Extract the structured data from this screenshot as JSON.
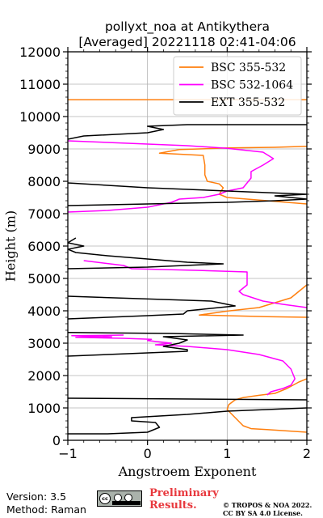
{
  "chart_data": {
    "type": "line",
    "title": "pollyxt_noa at Antikythera",
    "subtitle": "[Averaged] 20221118 02:41-04:06",
    "xlabel": "Angstroem Exponent",
    "ylabel": "Height (m)",
    "xlim": [
      -1,
      2
    ],
    "ylim": [
      0,
      12000
    ],
    "xticks": [
      -1,
      0,
      1,
      2
    ],
    "xtick_labels": [
      "−1",
      "0",
      "1",
      "2"
    ],
    "yticks": [
      0,
      1000,
      2000,
      3000,
      4000,
      5000,
      6000,
      7000,
      8000,
      9000,
      10000,
      11000,
      12000
    ],
    "grid": true,
    "legend_position": "top-right",
    "series": [
      {
        "name": "BSC 355-532",
        "color": "#ff7f0e",
        "points": [
          [
            2.0,
            250
          ],
          [
            1.5,
            330
          ],
          [
            1.3,
            360
          ],
          [
            1.2,
            450
          ],
          [
            1.1,
            700
          ],
          [
            1.0,
            950
          ],
          [
            1.02,
            1100
          ],
          [
            1.1,
            1250
          ],
          [
            1.2,
            1320
          ],
          [
            1.4,
            1390
          ],
          [
            1.6,
            1450
          ],
          [
            1.75,
            1600
          ],
          [
            1.9,
            1800
          ],
          [
            2.0,
            1900
          ],
          [
            null,
            null
          ],
          [
            2.0,
            3800
          ],
          [
            1.5,
            3820
          ],
          [
            0.65,
            3870
          ],
          [
            1.0,
            3990
          ],
          [
            1.4,
            4100
          ],
          [
            1.8,
            4400
          ],
          [
            2.0,
            4800
          ],
          [
            null,
            null
          ],
          [
            2.0,
            7300
          ],
          [
            1.5,
            7400
          ],
          [
            1.0,
            7500
          ],
          [
            0.9,
            7600
          ],
          [
            0.95,
            7800
          ],
          [
            0.9,
            7920
          ],
          [
            0.75,
            8000
          ],
          [
            0.72,
            8200
          ],
          [
            0.72,
            8500
          ],
          [
            0.7,
            8800
          ],
          [
            0.15,
            8870
          ],
          [
            0.4,
            8980
          ],
          [
            1.0,
            9030
          ],
          [
            1.6,
            9050
          ],
          [
            2.0,
            9080
          ],
          [
            null,
            null
          ],
          [
            -1.0,
            10520
          ],
          [
            2.0,
            10520
          ]
        ]
      },
      {
        "name": "BSC 532-1064",
        "color": "#ff00ff",
        "points": [
          [
            1.5,
            1400
          ],
          [
            1.55,
            1500
          ],
          [
            1.7,
            1600
          ],
          [
            1.8,
            1700
          ],
          [
            1.85,
            1900
          ],
          [
            1.8,
            2200
          ],
          [
            1.7,
            2450
          ],
          [
            1.4,
            2650
          ],
          [
            1.0,
            2800
          ],
          [
            0.5,
            2900
          ],
          [
            0.1,
            2950
          ],
          [
            0.3,
            3000
          ],
          [
            0.0,
            3080
          ],
          [
            0.05,
            3120
          ],
          [
            -0.3,
            3150
          ],
          [
            -0.9,
            3180
          ],
          [
            -0.45,
            3200
          ],
          [
            -0.95,
            3230
          ],
          [
            -0.3,
            3250
          ],
          [
            null,
            null
          ],
          [
            2.0,
            4100
          ],
          [
            1.7,
            4200
          ],
          [
            1.45,
            4300
          ],
          [
            1.2,
            4500
          ],
          [
            1.15,
            4600
          ],
          [
            1.25,
            4800
          ],
          [
            1.25,
            5000
          ],
          [
            1.25,
            5200
          ],
          [
            0.6,
            5250
          ],
          [
            -0.2,
            5300
          ],
          [
            -0.3,
            5400
          ],
          [
            -0.8,
            5550
          ],
          [
            null,
            null
          ],
          [
            -1.0,
            7050
          ],
          [
            -0.5,
            7100
          ],
          [
            0.0,
            7200
          ],
          [
            0.3,
            7350
          ],
          [
            0.4,
            7450
          ],
          [
            0.7,
            7500
          ],
          [
            0.9,
            7600
          ],
          [
            1.0,
            7700
          ],
          [
            1.2,
            7800
          ],
          [
            1.3,
            8100
          ],
          [
            1.3,
            8300
          ],
          [
            1.45,
            8500
          ],
          [
            1.58,
            8700
          ],
          [
            1.45,
            8900
          ],
          [
            1.0,
            9020
          ],
          [
            0.5,
            9100
          ],
          [
            0.0,
            9150
          ],
          [
            -0.5,
            9200
          ],
          [
            -1.0,
            9250
          ]
        ]
      },
      {
        "name": "EXT 355-532",
        "color": "#000000",
        "points": [
          [
            -1.0,
            200
          ],
          [
            -0.5,
            200
          ],
          [
            0.0,
            250
          ],
          [
            0.15,
            400
          ],
          [
            0.1,
            550
          ],
          [
            -0.2,
            600
          ],
          [
            -0.2,
            700
          ],
          [
            0.5,
            800
          ],
          [
            1.0,
            900
          ],
          [
            2.0,
            1000
          ],
          [
            null,
            null
          ],
          [
            -1.0,
            1300
          ],
          [
            2.0,
            1250
          ],
          [
            null,
            null
          ],
          [
            -1.0,
            2600
          ],
          [
            -0.5,
            2650
          ],
          [
            0.0,
            2700
          ],
          [
            0.5,
            2750
          ],
          [
            0.5,
            2800
          ],
          [
            0.2,
            2900
          ],
          [
            0.4,
            3000
          ],
          [
            0.5,
            3100
          ],
          [
            0.2,
            3200
          ],
          [
            1.2,
            3250
          ],
          [
            0.3,
            3300
          ],
          [
            -1.0,
            3330
          ],
          [
            null,
            null
          ],
          [
            -1.0,
            3750
          ],
          [
            -0.5,
            3800
          ],
          [
            0.0,
            3850
          ],
          [
            0.45,
            3900
          ],
          [
            0.5,
            4000
          ],
          [
            0.7,
            4050
          ],
          [
            1.1,
            4150
          ],
          [
            0.8,
            4300
          ],
          [
            -1.0,
            4450
          ],
          [
            null,
            null
          ],
          [
            -1.0,
            5300
          ],
          [
            0.0,
            5350
          ],
          [
            0.95,
            5450
          ],
          [
            0.5,
            5500
          ],
          [
            -0.5,
            5700
          ],
          [
            -0.9,
            5800
          ],
          [
            -1.0,
            5900
          ],
          [
            -0.8,
            6000
          ],
          [
            -1.0,
            6100
          ],
          [
            -0.9,
            6250
          ],
          [
            null,
            null
          ],
          [
            -1.0,
            7250
          ],
          [
            0.0,
            7300
          ],
          [
            1.0,
            7350
          ],
          [
            1.6,
            7400
          ],
          [
            2.0,
            7450
          ],
          [
            1.6,
            7550
          ],
          [
            2.0,
            7600
          ],
          [
            1.0,
            7700
          ],
          [
            0.0,
            7800
          ],
          [
            -1.0,
            7950
          ],
          [
            null,
            null
          ],
          [
            -1.0,
            9300
          ],
          [
            -0.8,
            9400
          ],
          [
            0.0,
            9500
          ],
          [
            0.2,
            9600
          ],
          [
            0.0,
            9700
          ],
          [
            0.5,
            9750
          ],
          [
            2.0,
            9750
          ]
        ]
      }
    ]
  },
  "footer": {
    "version": "Version: 3.5",
    "method": "Method: Raman",
    "license_badge_text": "cc",
    "preliminary_line1": "Preliminary",
    "preliminary_line2": "Results.",
    "copyright_line1": "© TROPOS & NOA 2022.",
    "copyright_line2": "CC BY SA 4.0 License."
  }
}
